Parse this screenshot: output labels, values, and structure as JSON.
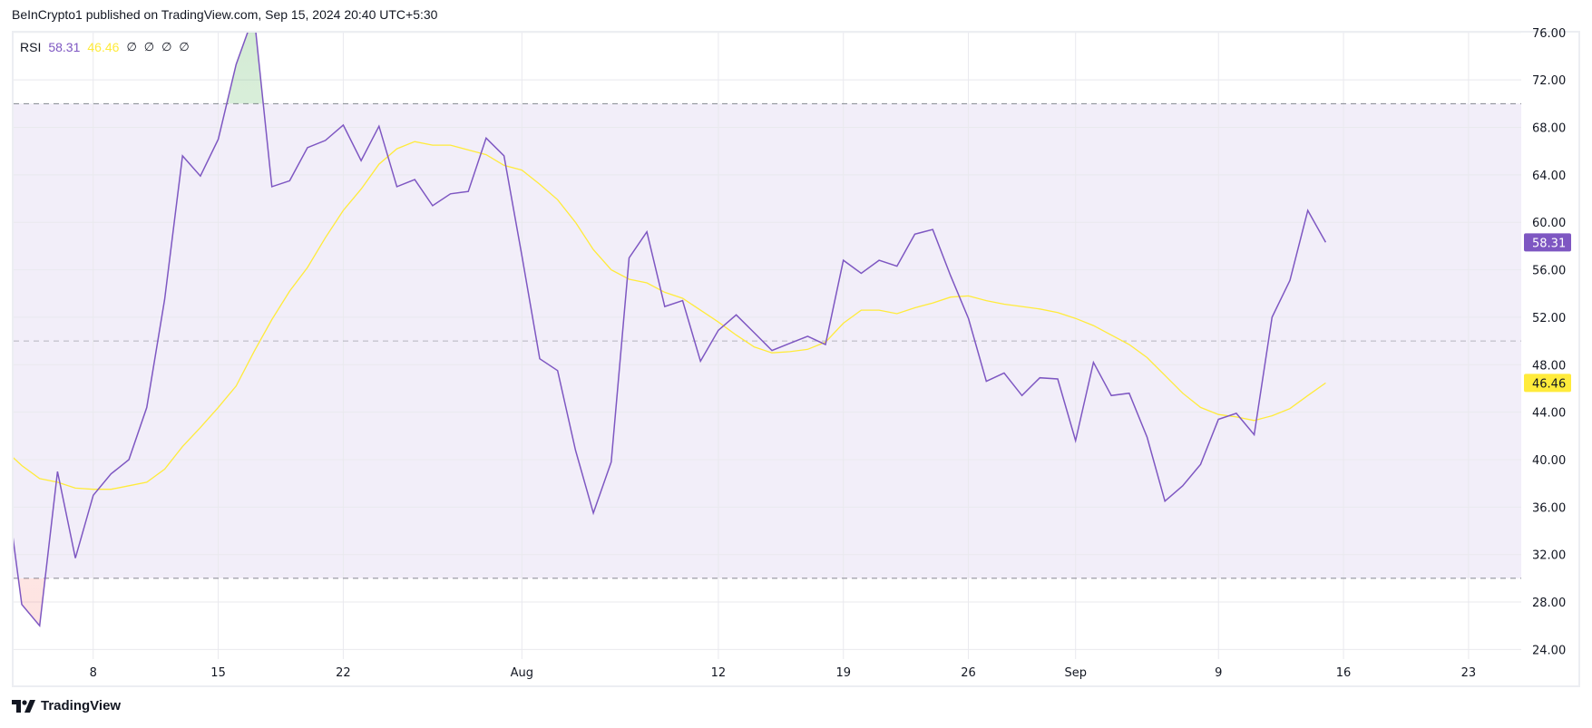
{
  "header": {
    "published": "BeInCrypto1 published on TradingView.com, Sep 15, 2024 20:40 UTC+5:30"
  },
  "legend": {
    "indicator": "RSI",
    "rsi_value": "58.31",
    "ma_value": "46.46",
    "na_values": [
      "∅",
      "∅",
      "∅",
      "∅"
    ]
  },
  "footer": {
    "brand": "TradingView",
    "logo_icon": "tradingview-logo-icon"
  },
  "colors": {
    "rsi": "#7e57c2",
    "ma": "#ffeb3b",
    "band": "#7e57c2",
    "overbought_fill": "#4caf50",
    "oversold_fill": "#f44336",
    "level_line": "#787b86"
  },
  "chart_data": {
    "type": "line",
    "title": "",
    "xlabel": "",
    "ylabel": "",
    "ylim": [
      24,
      76
    ],
    "grid": true,
    "y_ticks": [
      "24.00",
      "28.00",
      "32.00",
      "36.00",
      "40.00",
      "44.00",
      "48.00",
      "52.00",
      "56.00",
      "60.00",
      "64.00",
      "68.00",
      "72.00",
      "76.00"
    ],
    "x_ticks": [
      {
        "label": "8",
        "date": "2024-07-08"
      },
      {
        "label": "15",
        "date": "2024-07-15"
      },
      {
        "label": "22",
        "date": "2024-07-22"
      },
      {
        "label": "Aug",
        "date": "2024-08-01"
      },
      {
        "label": "12",
        "date": "2024-08-12"
      },
      {
        "label": "19",
        "date": "2024-08-19"
      },
      {
        "label": "26",
        "date": "2024-08-26"
      },
      {
        "label": "Sep",
        "date": "2024-09-01"
      },
      {
        "label": "9",
        "date": "2024-09-09"
      },
      {
        "label": "16",
        "date": "2024-09-16"
      },
      {
        "label": "23",
        "date": "2024-09-23"
      }
    ],
    "levels": {
      "upper": 70,
      "middle": 50,
      "lower": 30
    },
    "last_value_labels": [
      {
        "series": "RSI",
        "text": "58.31",
        "value": 58.31
      },
      {
        "series": "MA",
        "text": "46.46",
        "value": 46.46
      }
    ],
    "x": [
      "2024-07-03",
      "2024-07-04",
      "2024-07-05",
      "2024-07-06",
      "2024-07-07",
      "2024-07-08",
      "2024-07-09",
      "2024-07-10",
      "2024-07-11",
      "2024-07-12",
      "2024-07-13",
      "2024-07-14",
      "2024-07-15",
      "2024-07-16",
      "2024-07-17",
      "2024-07-18",
      "2024-07-19",
      "2024-07-20",
      "2024-07-21",
      "2024-07-22",
      "2024-07-23",
      "2024-07-24",
      "2024-07-25",
      "2024-07-26",
      "2024-07-27",
      "2024-07-28",
      "2024-07-29",
      "2024-07-30",
      "2024-07-31",
      "2024-08-01",
      "2024-08-02",
      "2024-08-03",
      "2024-08-04",
      "2024-08-05",
      "2024-08-06",
      "2024-08-07",
      "2024-08-08",
      "2024-08-09",
      "2024-08-10",
      "2024-08-11",
      "2024-08-12",
      "2024-08-13",
      "2024-08-14",
      "2024-08-15",
      "2024-08-16",
      "2024-08-17",
      "2024-08-18",
      "2024-08-19",
      "2024-08-20",
      "2024-08-21",
      "2024-08-22",
      "2024-08-23",
      "2024-08-24",
      "2024-08-25",
      "2024-08-26",
      "2024-08-27",
      "2024-08-28",
      "2024-08-29",
      "2024-08-30",
      "2024-08-31",
      "2024-09-01",
      "2024-09-02",
      "2024-09-03",
      "2024-09-04",
      "2024-09-05",
      "2024-09-06",
      "2024-09-07",
      "2024-09-08",
      "2024-09-09",
      "2024-09-10",
      "2024-09-11",
      "2024-09-12",
      "2024-09-13",
      "2024-09-14",
      "2024-09-15"
    ],
    "series": [
      {
        "key": "rsi",
        "values": [
          39.2,
          27.8,
          26.0,
          39.0,
          31.7,
          37.0,
          38.8,
          40.0,
          44.4,
          53.5,
          65.6,
          63.9,
          67.0,
          73.3,
          77.5,
          63.0,
          63.5,
          66.3,
          66.9,
          68.2,
          65.2,
          68.1,
          63.0,
          63.6,
          61.4,
          62.4,
          62.6,
          67.1,
          65.6,
          57.2,
          48.5,
          47.5,
          40.8,
          35.5,
          39.8,
          57.0,
          59.2,
          52.9,
          53.4,
          48.3,
          50.9,
          52.2,
          50.7,
          49.2,
          49.8,
          50.4,
          49.7,
          56.8,
          55.7,
          56.8,
          56.3,
          59.0,
          59.4,
          55.5,
          51.9,
          46.6,
          47.3,
          45.4,
          46.9,
          46.8,
          41.6,
          48.2,
          45.4,
          45.6,
          41.9,
          36.5,
          37.8,
          39.6,
          43.4,
          43.9,
          42.1,
          52.0,
          55.1,
          61.0,
          58.31
        ]
      },
      {
        "key": "ma",
        "values": [
          40.9,
          39.5,
          38.4,
          38.1,
          37.6,
          37.5,
          37.5,
          37.8,
          38.1,
          39.2,
          41.1,
          42.7,
          44.4,
          46.2,
          49.1,
          51.8,
          54.2,
          56.2,
          58.7,
          61.0,
          62.8,
          64.9,
          66.2,
          66.8,
          66.5,
          66.5,
          66.1,
          65.7,
          64.8,
          64.4,
          63.2,
          61.9,
          60.0,
          57.7,
          56.0,
          55.2,
          54.9,
          54.1,
          53.6,
          52.6,
          51.6,
          50.5,
          49.5,
          49.0,
          49.1,
          49.3,
          49.9,
          51.5,
          52.6,
          52.6,
          52.3,
          52.8,
          53.2,
          53.7,
          53.8,
          53.4,
          53.1,
          52.9,
          52.7,
          52.4,
          51.9,
          51.3,
          50.5,
          49.7,
          48.6,
          47.1,
          45.6,
          44.4,
          43.8,
          43.6,
          43.3,
          43.7,
          44.3,
          45.4,
          46.46
        ]
      }
    ]
  }
}
